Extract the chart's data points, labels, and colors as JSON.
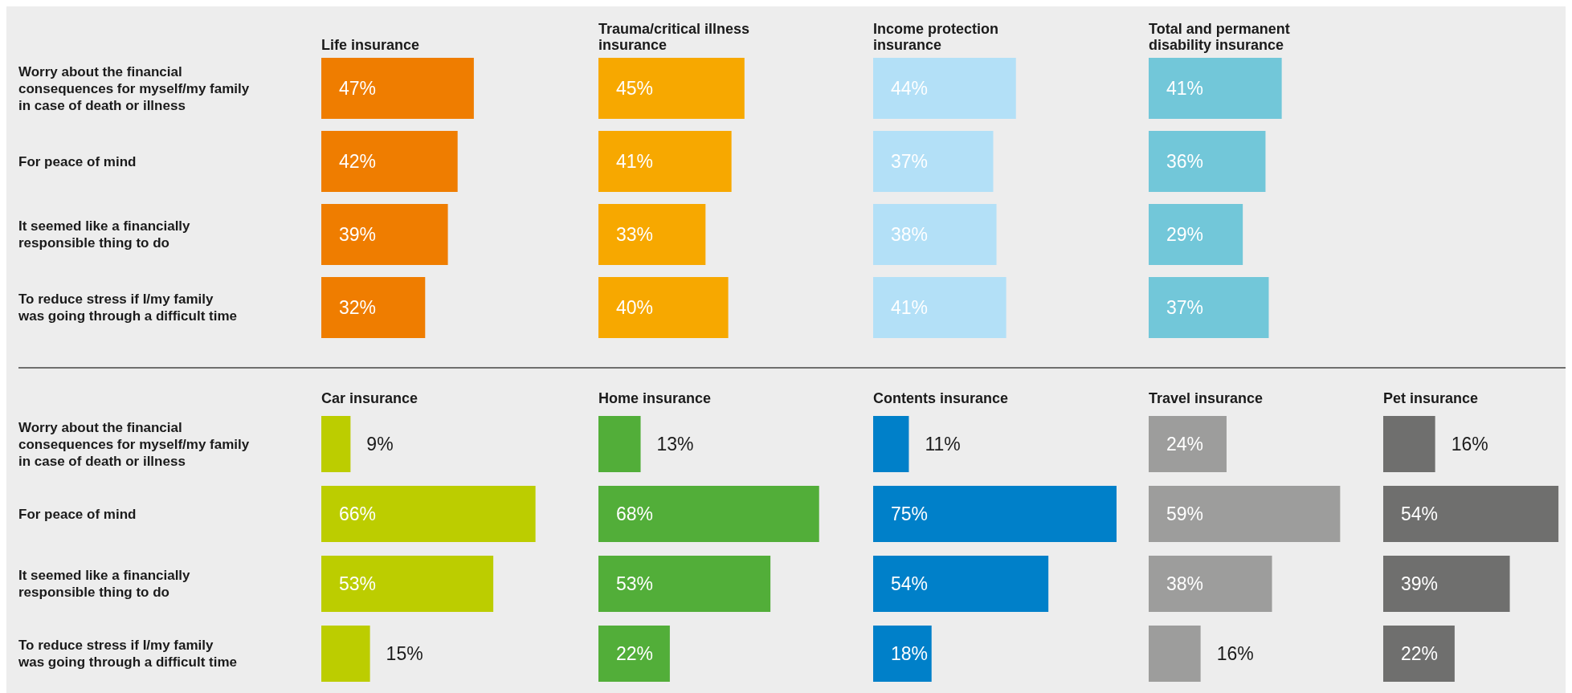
{
  "chart_data": [
    {
      "type": "bar",
      "orientation": "horizontal",
      "title": "Life insurance",
      "categories": [
        "Worry about the financial consequences for myself/my family in case of death or illness",
        "For peace of mind",
        "It seemed like a financially responsible thing to do",
        "To reduce stress if I/my family was going through a difficult time"
      ],
      "values": [
        47,
        42,
        39,
        32
      ],
      "value_labels": [
        "47%",
        "42%",
        "39%",
        "32%"
      ],
      "color": "#ef7d00"
    },
    {
      "type": "bar",
      "orientation": "horizontal",
      "title": "Trauma/critical illness insurance",
      "categories": [
        null,
        null,
        null,
        null
      ],
      "values": [
        45,
        41,
        33,
        40
      ],
      "value_labels": [
        "45%",
        "41%",
        "33%",
        "40%"
      ],
      "color": "#f7a800"
    },
    {
      "type": "bar",
      "orientation": "horizontal",
      "title": "Income protection insurance",
      "categories": [
        null,
        null,
        null,
        null
      ],
      "values": [
        44,
        37,
        38,
        41
      ],
      "value_labels": [
        "44%",
        "37%",
        "38%",
        "41%"
      ],
      "color": "#b3e0f7"
    },
    {
      "type": "bar",
      "orientation": "horizontal",
      "title": "Total and permanent disability insurance",
      "categories": [
        null,
        null,
        null,
        null
      ],
      "values": [
        41,
        36,
        29,
        37
      ],
      "value_labels": [
        "41%",
        "36%",
        "29%",
        "37%"
      ],
      "color": "#72c7d9"
    },
    {
      "type": "bar",
      "orientation": "horizontal",
      "title": "Car insurance",
      "categories": [
        "Worry about the financial consequences for myself/my family in case of death or illness",
        "For peace of mind",
        "It seemed like a financially responsible thing to do",
        "To reduce stress if I/my family was going through a difficult time"
      ],
      "values": [
        9,
        66,
        53,
        15
      ],
      "value_labels": [
        "9%",
        "66%",
        "53%",
        "15%"
      ],
      "color": "#bccd00"
    },
    {
      "type": "bar",
      "orientation": "horizontal",
      "title": "Home insurance",
      "categories": [
        null,
        null,
        null,
        null
      ],
      "values": [
        13,
        68,
        53,
        22
      ],
      "value_labels": [
        "13%",
        "68%",
        "53%",
        "22%"
      ],
      "color": "#52ae39"
    },
    {
      "type": "bar",
      "orientation": "horizontal",
      "title": "Contents insurance",
      "categories": [
        null,
        null,
        null,
        null
      ],
      "values": [
        11,
        75,
        54,
        18
      ],
      "value_labels": [
        "11%",
        "75%",
        "54%",
        "18%"
      ],
      "color": "#0080c9"
    },
    {
      "type": "bar",
      "orientation": "horizontal",
      "title": "Travel insurance",
      "categories": [
        null,
        null,
        null,
        null
      ],
      "values": [
        24,
        59,
        38,
        16
      ],
      "value_labels": [
        "24%",
        "59%",
        "38%",
        "16%"
      ],
      "color": "#9d9d9c"
    },
    {
      "type": "bar",
      "orientation": "horizontal",
      "title": "Pet insurance",
      "categories": [
        null,
        null,
        null,
        null
      ],
      "values": [
        16,
        54,
        39,
        22
      ],
      "value_labels": [
        "16%",
        "54%",
        "39%",
        "22%"
      ],
      "color": "#6f6f6e"
    }
  ]
}
